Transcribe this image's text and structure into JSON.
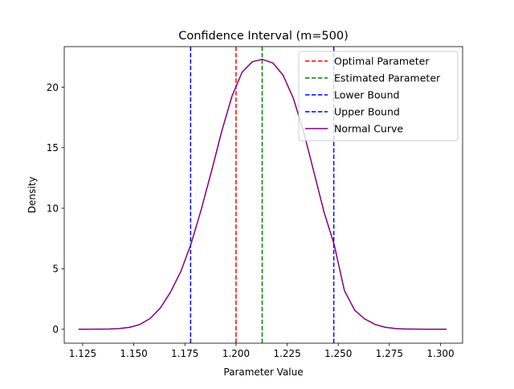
{
  "chart_data": {
    "type": "line",
    "title": "Confidence Interval (m=500)",
    "xlabel": "Parameter Value",
    "ylabel": "Density",
    "xlim": [
      1.116,
      1.3108
    ],
    "ylim": [
      -1.15,
      23.35
    ],
    "xticks": [
      1.125,
      1.15,
      1.175,
      1.2,
      1.225,
      1.25,
      1.275,
      1.3
    ],
    "xtick_labels": [
      "1.125",
      "1.150",
      "1.175",
      "1.200",
      "1.225",
      "1.250",
      "1.275",
      "1.300"
    ],
    "yticks": [
      0,
      5,
      10,
      15,
      20
    ],
    "ytick_labels": [
      "0",
      "5",
      "10",
      "15",
      "20"
    ],
    "grid": false,
    "legend_position": "top-right",
    "vlines": [
      {
        "name": "Optimal Parameter",
        "x": 1.2,
        "color": "#ff0000",
        "style": "dashed"
      },
      {
        "name": "Estimated Parameter",
        "x": 1.2128,
        "color": "#008000",
        "style": "dashed"
      },
      {
        "name": "Lower Bound",
        "x": 1.1778,
        "color": "#0000ff",
        "style": "dashed"
      },
      {
        "name": "Upper Bound",
        "x": 1.2478,
        "color": "#0000ff",
        "style": "dashed"
      }
    ],
    "series": [
      {
        "name": "Normal Curve",
        "color": "#800080",
        "style": "solid",
        "x": [
          1.123,
          1.128,
          1.133,
          1.138,
          1.143,
          1.148,
          1.153,
          1.158,
          1.163,
          1.168,
          1.173,
          1.178,
          1.183,
          1.188,
          1.193,
          1.198,
          1.203,
          1.208,
          1.2128,
          1.218,
          1.223,
          1.228,
          1.233,
          1.238,
          1.243,
          1.248,
          1.253,
          1.258,
          1.263,
          1.268,
          1.273,
          1.278,
          1.283,
          1.288,
          1.293,
          1.298,
          1.303
        ],
        "y": [
          0.0,
          0.0,
          0.01,
          0.02,
          0.06,
          0.16,
          0.4,
          0.89,
          1.76,
          3.08,
          4.77,
          7.05,
          9.9,
          13.05,
          16.35,
          19.25,
          21.25,
          22.1,
          22.3,
          22.0,
          21.0,
          19.1,
          16.35,
          13.05,
          9.7,
          7.0,
          3.2,
          1.58,
          0.85,
          0.4,
          0.16,
          0.06,
          0.02,
          0.01,
          0.0,
          0.0,
          0.0
        ]
      }
    ]
  }
}
